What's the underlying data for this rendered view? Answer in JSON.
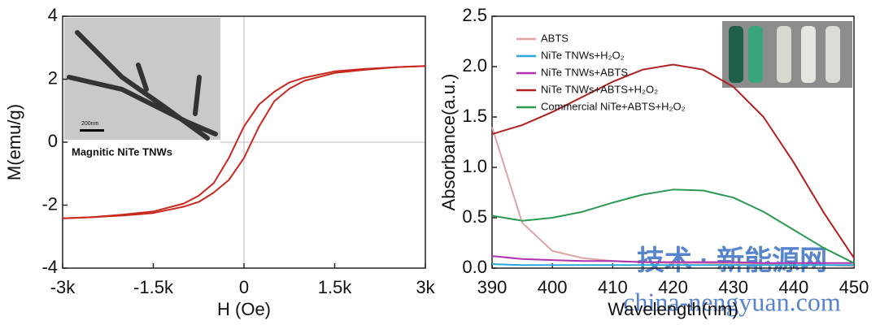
{
  "chart_data": [
    {
      "type": "line",
      "xlabel": "H (Oe)",
      "ylabel": "M(emu/g)",
      "inset_label": "Magnitic NiTe TNWs",
      "inset_scale": "200nm",
      "x": [
        -3000,
        -2500,
        -2000,
        -1500,
        -1000,
        -750,
        -500,
        -250,
        0,
        250,
        500,
        750,
        1000,
        1500,
        2000,
        2500,
        3000
      ],
      "series": [
        {
          "color": "#c8281e",
          "values": [
            -2.42,
            -2.38,
            -2.3,
            -2.2,
            -1.95,
            -1.7,
            -1.3,
            -0.5,
            0.5,
            1.2,
            1.6,
            1.9,
            2.05,
            2.25,
            2.33,
            2.38,
            2.42
          ]
        },
        {
          "color": "#c8281e",
          "values": [
            -2.42,
            -2.38,
            -2.33,
            -2.25,
            -2.05,
            -1.9,
            -1.6,
            -1.2,
            -0.5,
            0.5,
            1.3,
            1.7,
            1.95,
            2.2,
            2.3,
            2.38,
            2.42
          ]
        }
      ],
      "xlim": [
        -3000,
        3000
      ],
      "xticks": [
        {
          "value": -3000,
          "label": "-3k"
        },
        {
          "value": -1500,
          "label": "-1.5k"
        },
        0,
        {
          "value": 1500,
          "label": "1.5k"
        },
        {
          "value": 3000,
          "label": "3k"
        }
      ],
      "ylim": [
        -4,
        4
      ],
      "yticks": [
        -4,
        -2,
        0,
        2,
        4
      ],
      "zero_lines": true
    },
    {
      "type": "line",
      "xlabel": "Wavelength(nm)",
      "ylabel": "Absorbance(a.u.)",
      "x": [
        390,
        395,
        400,
        405,
        410,
        415,
        420,
        425,
        430,
        435,
        440,
        445,
        450
      ],
      "series": [
        {
          "name": "ABTS",
          "color": "#e2a3a3",
          "values": [
            1.4,
            0.45,
            0.17,
            0.1,
            0.07,
            0.06,
            0.05,
            0.05,
            0.04,
            0.04,
            0.03,
            0.03,
            0.02
          ]
        },
        {
          "name": "NiTe TNWs+H₂O₂",
          "color": "#2aa8d8",
          "values": [
            0.04,
            0.03,
            0.03,
            0.03,
            0.03,
            0.03,
            0.03,
            0.03,
            0.03,
            0.03,
            0.03,
            0.03,
            0.03
          ]
        },
        {
          "name": "NiTe TNWs+ABTS",
          "color": "#b030b0",
          "values": [
            0.12,
            0.09,
            0.08,
            0.07,
            0.07,
            0.06,
            0.06,
            0.06,
            0.06,
            0.05,
            0.05,
            0.05,
            0.05
          ]
        },
        {
          "name": "NiTe TNWs+ABTS+H₂O₂",
          "color": "#b02020",
          "values": [
            1.33,
            1.42,
            1.55,
            1.7,
            1.85,
            1.97,
            2.02,
            1.97,
            1.8,
            1.5,
            1.05,
            0.55,
            0.1
          ]
        },
        {
          "name": "Commercial NiTe+ABTS+H₂O₂",
          "color": "#2a9a50",
          "values": [
            0.52,
            0.47,
            0.5,
            0.56,
            0.65,
            0.73,
            0.78,
            0.77,
            0.7,
            0.56,
            0.38,
            0.2,
            0.05
          ]
        }
      ],
      "xlim": [
        390,
        450
      ],
      "xticks": [
        390,
        400,
        410,
        420,
        430,
        440,
        450
      ],
      "ylim": [
        0,
        2.5
      ],
      "yticks": [
        {
          "value": 0,
          "label": "0.0"
        },
        0.5,
        {
          "value": 1,
          "label": "1.0"
        },
        1.5,
        {
          "value": 2,
          "label": "2.0"
        },
        2.5
      ],
      "legend": "upper-left"
    }
  ],
  "watermark": [
    "技术 · 新能源网",
    "china-nengyuan.com"
  ]
}
